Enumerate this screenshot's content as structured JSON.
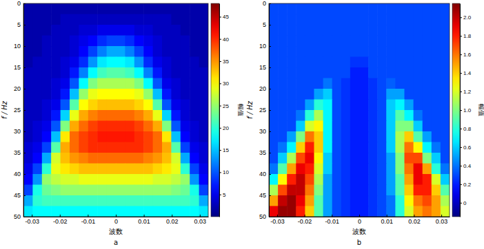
{
  "chart_data": [
    {
      "type": "heatmap",
      "title": "a",
      "x_label": "波数",
      "y_label": "f / Hz",
      "colorbar_label": "幅值",
      "color": "jet",
      "xlim": [
        -0.033,
        0.033
      ],
      "xticks": [
        -0.03,
        -0.02,
        -0.01,
        0,
        0.01,
        0.02,
        0.03
      ],
      "ylim": [
        0,
        50
      ],
      "yticks": [
        0,
        5,
        10,
        15,
        20,
        25,
        30,
        35,
        40,
        45,
        50
      ],
      "colorbar_range": [
        0,
        48
      ],
      "colorbar_ticks": [
        5,
        10,
        15,
        20,
        25,
        30,
        35,
        40,
        45
      ],
      "x": [
        -0.03135,
        -0.02805,
        -0.02475,
        -0.02145,
        -0.01815,
        -0.01485,
        -0.01155,
        -0.00825,
        -0.00495,
        -0.00165,
        0.00165,
        0.00495,
        0.00825,
        0.01155,
        0.01485,
        0.01815,
        0.02145,
        0.02475,
        0.02805,
        0.03135
      ],
      "y": [
        1.25,
        3.75,
        6.25,
        8.75,
        11.25,
        13.75,
        16.25,
        18.75,
        21.25,
        23.75,
        26.25,
        28.75,
        31.25,
        33.75,
        36.25,
        38.75,
        41.25,
        43.75,
        46.25,
        48.75
      ],
      "z": [
        [
          2,
          2,
          2,
          2,
          2,
          2,
          2,
          2,
          2,
          2,
          2,
          2,
          2,
          2,
          2,
          2,
          2,
          2,
          2,
          2
        ],
        [
          2,
          2,
          2,
          2,
          3,
          3,
          3,
          3,
          3,
          3,
          3,
          3,
          3,
          3,
          3,
          3,
          2,
          2,
          2,
          2
        ],
        [
          2,
          2,
          2,
          3,
          3,
          3,
          4,
          4,
          5,
          5,
          5,
          5,
          4,
          4,
          3,
          3,
          3,
          2,
          2,
          2
        ],
        [
          2,
          2,
          3,
          3,
          3,
          4,
          5,
          6,
          8,
          9,
          9,
          8,
          6,
          5,
          4,
          3,
          3,
          3,
          2,
          2
        ],
        [
          2,
          2,
          3,
          3,
          3,
          4,
          6,
          9,
          12,
          14,
          14,
          12,
          9,
          6,
          4,
          3,
          3,
          3,
          2,
          2
        ],
        [
          2,
          3,
          3,
          3,
          4,
          5,
          8,
          13,
          17,
          18,
          18,
          17,
          13,
          8,
          5,
          4,
          3,
          3,
          3,
          2
        ],
        [
          3,
          3,
          3,
          3,
          4,
          7,
          12,
          18,
          21,
          22,
          22,
          21,
          18,
          12,
          7,
          4,
          3,
          3,
          3,
          3
        ],
        [
          3,
          3,
          3,
          4,
          5,
          10,
          18,
          24,
          26,
          26,
          26,
          26,
          24,
          18,
          10,
          5,
          4,
          3,
          3,
          3
        ],
        [
          3,
          3,
          3,
          4,
          7,
          15,
          25,
          29,
          30,
          30,
          30,
          30,
          29,
          25,
          15,
          7,
          4,
          3,
          3,
          3
        ],
        [
          3,
          3,
          4,
          5,
          10,
          22,
          30,
          32,
          33,
          33,
          33,
          33,
          32,
          30,
          22,
          10,
          5,
          4,
          3,
          3
        ],
        [
          3,
          3,
          4,
          7,
          16,
          29,
          34,
          36,
          37,
          37,
          37,
          37,
          36,
          34,
          29,
          16,
          7,
          4,
          3,
          3
        ],
        [
          3,
          4,
          5,
          10,
          24,
          34,
          37,
          39,
          40,
          40,
          40,
          40,
          39,
          37,
          34,
          24,
          10,
          5,
          4,
          3
        ],
        [
          3,
          4,
          6,
          15,
          31,
          37,
          39,
          40,
          41,
          41,
          41,
          41,
          40,
          39,
          37,
          31,
          15,
          6,
          4,
          3
        ],
        [
          4,
          5,
          9,
          22,
          34,
          37,
          39,
          40,
          40,
          40,
          40,
          40,
          40,
          39,
          37,
          34,
          22,
          9,
          5,
          4
        ],
        [
          4,
          6,
          14,
          28,
          33,
          35,
          36,
          37,
          37,
          37,
          37,
          37,
          37,
          36,
          35,
          33,
          28,
          14,
          6,
          4
        ],
        [
          5,
          9,
          20,
          29,
          31,
          32,
          33,
          33,
          33,
          33,
          33,
          33,
          33,
          33,
          32,
          31,
          29,
          20,
          9,
          5
        ],
        [
          6,
          13,
          25,
          27,
          28,
          28,
          29,
          29,
          29,
          29,
          29,
          29,
          29,
          29,
          28,
          28,
          27,
          25,
          13,
          6
        ],
        [
          9,
          19,
          23,
          24,
          25,
          25,
          25,
          25,
          25,
          25,
          25,
          25,
          25,
          25,
          25,
          25,
          24,
          23,
          19,
          9
        ],
        [
          14,
          20,
          21,
          21,
          21,
          21,
          21,
          21,
          21,
          21,
          21,
          21,
          21,
          21,
          21,
          21,
          21,
          21,
          20,
          14
        ],
        [
          17,
          18,
          18,
          18,
          18,
          18,
          18,
          18,
          18,
          18,
          18,
          18,
          18,
          18,
          18,
          18,
          18,
          18,
          18,
          17
        ]
      ]
    },
    {
      "type": "heatmap",
      "title": "b",
      "x_label": "波数",
      "y_label": "f / Hz",
      "colorbar_label": "幅值",
      "color": "jet",
      "xlim": [
        -0.033,
        0.033
      ],
      "xticks": [
        -0.03,
        -0.02,
        -0.01,
        0,
        0.01,
        0.02,
        0.03
      ],
      "ylim": [
        0,
        50
      ],
      "yticks": [
        0,
        5,
        10,
        15,
        20,
        25,
        30,
        35,
        40,
        45,
        50
      ],
      "colorbar_range": [
        -0.15,
        2.15
      ],
      "colorbar_ticks": [
        0,
        0.2,
        0.4,
        0.6,
        0.8,
        {
          "value": 1,
          "label": "1.0"
        },
        1.2,
        1.4,
        1.6,
        1.8,
        {
          "value": 2,
          "label": "2.0"
        }
      ],
      "x": [
        -0.03135,
        -0.02805,
        -0.02475,
        -0.02145,
        -0.01815,
        -0.01485,
        -0.01155,
        -0.00825,
        -0.00495,
        -0.00165,
        0.00165,
        0.00495,
        0.00825,
        0.01155,
        0.01485,
        0.01815,
        0.02145,
        0.02475,
        0.02805,
        0.03135
      ],
      "y": [
        1.25,
        3.75,
        6.25,
        8.75,
        11.25,
        13.75,
        16.25,
        18.75,
        21.25,
        23.75,
        26.25,
        28.75,
        31.25,
        33.75,
        36.25,
        38.75,
        41.25,
        43.75,
        46.25,
        48.75
      ],
      "z": [
        [
          0.3,
          0.3,
          0.3,
          0.3,
          0.3,
          0.3,
          0.3,
          0.3,
          0.3,
          0.3,
          0.3,
          0.3,
          0.3,
          0.3,
          0.3,
          0.3,
          0.3,
          0.3,
          0.3,
          0.3
        ],
        [
          0.3,
          0.3,
          0.3,
          0.3,
          0.3,
          0.3,
          0.3,
          0.3,
          0.3,
          0.3,
          0.3,
          0.3,
          0.3,
          0.3,
          0.3,
          0.3,
          0.3,
          0.3,
          0.3,
          0.3
        ],
        [
          0.3,
          0.3,
          0.3,
          0.3,
          0.3,
          0.3,
          0.3,
          0.3,
          0.3,
          0.3,
          0.3,
          0.3,
          0.3,
          0.3,
          0.3,
          0.3,
          0.3,
          0.3,
          0.3,
          0.3
        ],
        [
          0.3,
          0.3,
          0.3,
          0.3,
          0.3,
          0.3,
          0.3,
          0.3,
          0.3,
          0.3,
          0.3,
          0.3,
          0.3,
          0.3,
          0.3,
          0.3,
          0.3,
          0.3,
          0.3,
          0.3
        ],
        [
          0.3,
          0.3,
          0.3,
          0.3,
          0.3,
          0.3,
          0.3,
          0.3,
          0.3,
          0.3,
          0.3,
          0.3,
          0.3,
          0.3,
          0.3,
          0.3,
          0.3,
          0.3,
          0.3,
          0.3
        ],
        [
          0.3,
          0.3,
          0.3,
          0.3,
          0.3,
          0.3,
          0.3,
          0.3,
          0.3,
          0.25,
          0.25,
          0.3,
          0.3,
          0.3,
          0.3,
          0.3,
          0.3,
          0.3,
          0.3,
          0.3
        ],
        [
          0.3,
          0.3,
          0.3,
          0.3,
          0.3,
          0.3,
          0.3,
          0.3,
          0.3,
          0.2,
          0.2,
          0.3,
          0.3,
          0.3,
          0.3,
          0.3,
          0.3,
          0.3,
          0.3,
          0.3
        ],
        [
          0.3,
          0.3,
          0.3,
          0.3,
          0.3,
          0.3,
          0.4,
          0.3,
          0.25,
          0.2,
          0.2,
          0.25,
          0.3,
          0.35,
          0.3,
          0.3,
          0.3,
          0.3,
          0.3,
          0.3
        ],
        [
          0.3,
          0.3,
          0.3,
          0.3,
          0.3,
          0.5,
          0.6,
          0.3,
          0.25,
          0.2,
          0.2,
          0.25,
          0.3,
          0.5,
          0.5,
          0.3,
          0.3,
          0.3,
          0.3,
          0.3
        ],
        [
          0.3,
          0.3,
          0.3,
          0.3,
          0.5,
          0.8,
          0.7,
          0.3,
          0.25,
          0.2,
          0.2,
          0.25,
          0.3,
          0.6,
          0.7,
          0.5,
          0.3,
          0.3,
          0.3,
          0.3
        ],
        [
          0.3,
          0.3,
          0.3,
          0.4,
          0.8,
          1.1,
          0.7,
          0.3,
          0.25,
          0.2,
          0.2,
          0.25,
          0.3,
          0.6,
          0.9,
          0.7,
          0.4,
          0.3,
          0.3,
          0.3
        ],
        [
          0.3,
          0.3,
          0.3,
          0.6,
          1.2,
          1.3,
          0.7,
          0.3,
          0.25,
          0.2,
          0.2,
          0.25,
          0.3,
          0.6,
          1.0,
          1.0,
          0.6,
          0.3,
          0.3,
          0.3
        ],
        [
          0.3,
          0.3,
          0.5,
          1.0,
          1.6,
          1.4,
          0.7,
          0.3,
          0.25,
          0.2,
          0.2,
          0.25,
          0.3,
          0.6,
          1.1,
          1.4,
          0.9,
          0.5,
          0.3,
          0.3
        ],
        [
          0.3,
          0.4,
          0.7,
          1.4,
          1.8,
          1.4,
          0.7,
          0.3,
          0.25,
          0.2,
          0.2,
          0.25,
          0.3,
          0.6,
          1.1,
          1.6,
          1.3,
          0.7,
          0.4,
          0.3
        ],
        [
          0.3,
          0.6,
          1.1,
          1.7,
          1.9,
          1.3,
          0.6,
          0.3,
          0.25,
          0.2,
          0.2,
          0.25,
          0.3,
          0.5,
          1.0,
          1.7,
          1.7,
          1.0,
          0.6,
          0.3
        ],
        [
          0.4,
          0.9,
          1.5,
          1.9,
          1.8,
          1.2,
          0.6,
          0.3,
          0.25,
          0.2,
          0.2,
          0.25,
          0.3,
          0.5,
          1.0,
          1.6,
          1.9,
          1.5,
          0.8,
          0.4
        ],
        [
          0.7,
          1.3,
          1.8,
          2.0,
          1.7,
          1.1,
          0.5,
          0.3,
          0.25,
          0.2,
          0.2,
          0.25,
          0.3,
          0.5,
          0.9,
          1.5,
          1.9,
          1.8,
          1.2,
          0.6
        ],
        [
          1.1,
          1.7,
          2.0,
          2.0,
          1.6,
          1.0,
          0.5,
          0.3,
          0.25,
          0.2,
          0.2,
          0.25,
          0.3,
          0.5,
          0.9,
          1.4,
          1.8,
          1.8,
          1.4,
          0.9
        ],
        [
          1.5,
          2.0,
          2.1,
          1.9,
          1.5,
          0.9,
          0.5,
          0.3,
          0.25,
          0.2,
          0.2,
          0.25,
          0.3,
          0.4,
          0.8,
          1.3,
          1.6,
          1.7,
          1.5,
          1.1
        ],
        [
          1.9,
          2.1,
          2.1,
          1.8,
          1.4,
          0.9,
          0.5,
          0.3,
          0.25,
          0.2,
          0.2,
          0.25,
          0.3,
          0.4,
          0.8,
          1.2,
          1.5,
          1.6,
          1.5,
          1.2
        ]
      ]
    }
  ]
}
